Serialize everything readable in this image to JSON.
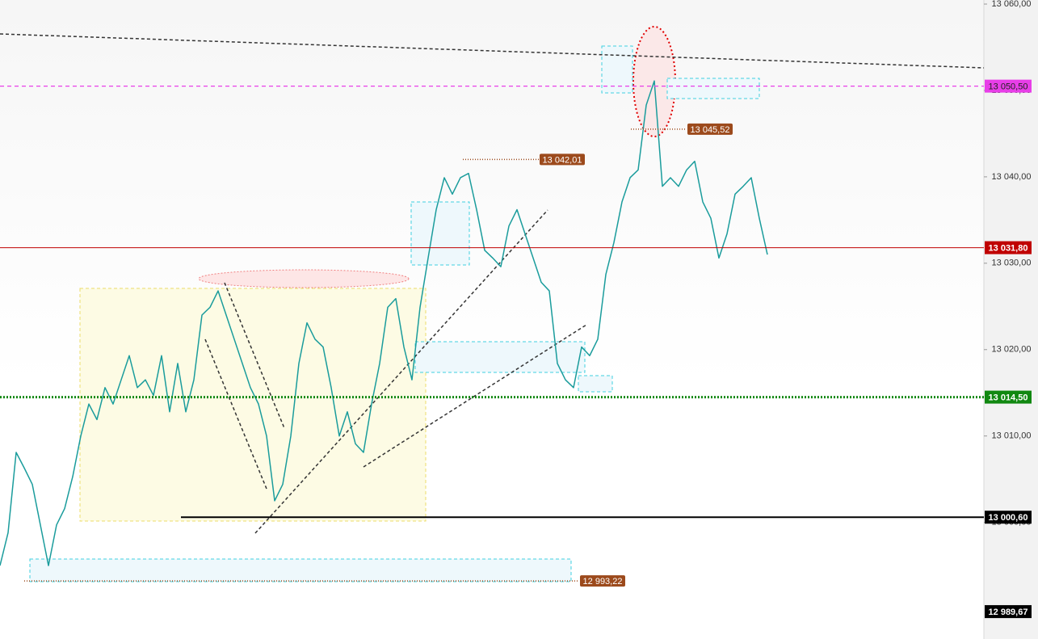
{
  "chart_data": {
    "type": "line",
    "color": "#1a9c9c",
    "values": [
      12995.0,
      12998.8,
      13008.1,
      13006.3,
      13004.4,
      12999.7,
      12995.0,
      12999.7,
      13001.6,
      13005.3,
      13010.0,
      13013.7,
      13011.9,
      13015.6,
      13013.7,
      13016.5,
      13019.3,
      13015.6,
      13016.5,
      13014.7,
      13019.3,
      13012.8,
      13018.4,
      13012.8,
      13016.5,
      13024.0,
      13024.9,
      13026.8,
      13024.0,
      13021.2,
      13018.4,
      13015.6,
      13013.7,
      13010.0,
      13002.5,
      13004.4,
      13010.0,
      13018.4,
      13023.1,
      13021.2,
      13020.3,
      13015.6,
      13010.0,
      13012.8,
      13009.1,
      13008.1,
      13013.7,
      13018.4,
      13024.9,
      13025.9,
      13020.3,
      13016.5,
      13024.9,
      13030.6,
      13036.2,
      13039.9,
      13038.0,
      13039.9,
      13040.4,
      13036.2,
      13031.5,
      13030.6,
      13029.6,
      13034.3,
      13036.2,
      13033.4,
      13030.6,
      13027.8,
      13026.8,
      13018.4,
      13016.5,
      13015.6,
      13020.3,
      13019.3,
      13021.2,
      13028.7,
      13032.4,
      13037.1,
      13039.9,
      13040.8,
      13048.3,
      13051.1,
      13038.9,
      13039.9,
      13038.9,
      13040.8,
      13041.8,
      13037.1,
      13035.2,
      13030.6,
      13033.4,
      13038.0,
      13038.9,
      13039.9,
      13035.2,
      13031.0
    ],
    "ylim": [
      12986.5,
      13060.47
    ],
    "yticks": [
      {
        "value": 13060,
        "label": "13 060,00"
      },
      {
        "value": 13050,
        "label": "13 050,00"
      },
      {
        "value": 13040,
        "label": "13 040,00"
      },
      {
        "value": 13030,
        "label": "13 030,00"
      },
      {
        "value": 13020,
        "label": "13 020,00"
      },
      {
        "value": 13010,
        "label": "13 010,00"
      },
      {
        "value": 13000,
        "label": "13 000,00"
      }
    ],
    "price_levels": [
      {
        "value": 13050.5,
        "label": "13 050,50",
        "color": "#e83ee8"
      },
      {
        "value": 13031.8,
        "label": "13 031,80",
        "color": "#c00000"
      },
      {
        "value": 13014.5,
        "label": "13 014,50",
        "color": "#118811"
      },
      {
        "value": 13000.6,
        "label": "13 000,60",
        "color": "#000000"
      },
      {
        "value": 12989.67,
        "label": "12 989,67",
        "color": "#000000"
      }
    ],
    "annotations": [
      {
        "value": 13045.52,
        "label": "13 045,52"
      },
      {
        "value": 13042.01,
        "label": "13 042,01"
      },
      {
        "value": 12993.22,
        "label": "12 993,22"
      }
    ],
    "annotation_color": "#9c4a1c"
  }
}
